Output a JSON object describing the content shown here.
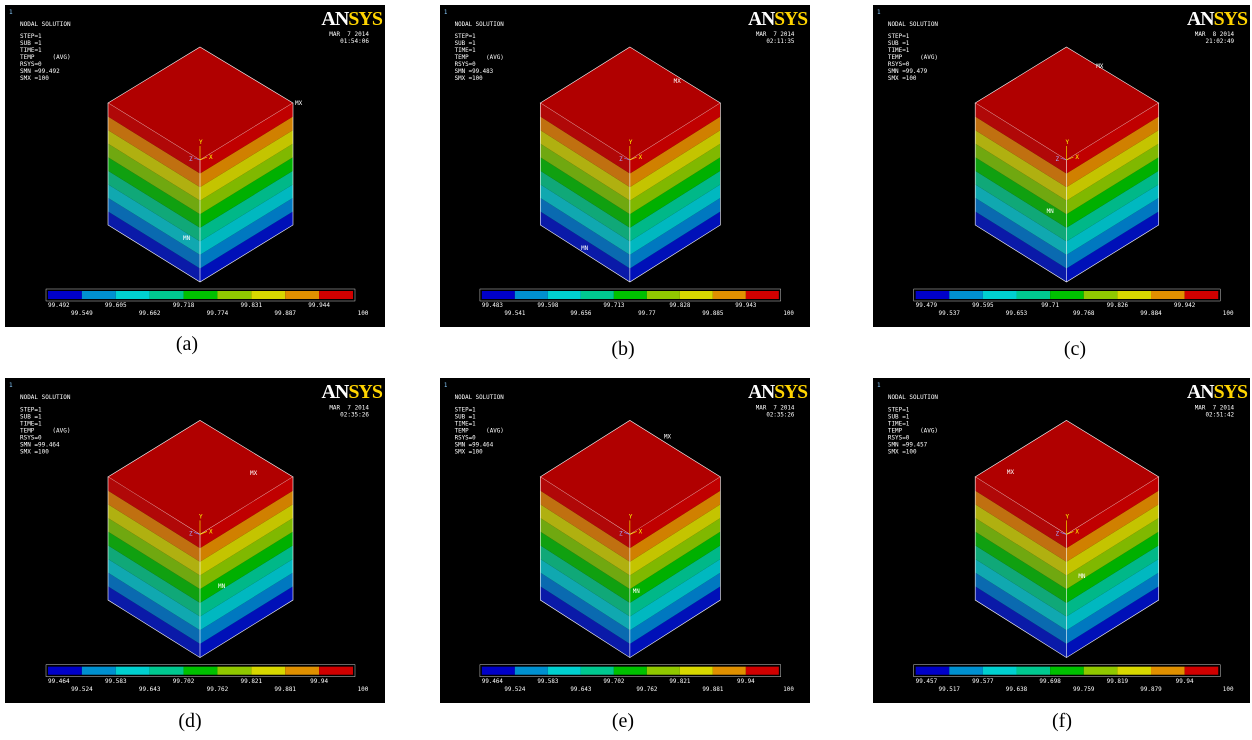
{
  "panels": [
    {
      "id": "1",
      "title": "NODAL SOLUTION",
      "info": [
        "STEP=1",
        "SUB =1",
        "TIME=1",
        "TEMP     (AVG)",
        "RSYS=0",
        "SMN =99.492",
        "SMX =100"
      ],
      "logo": "ANSYS",
      "date": "MAR  7 2014",
      "time": "01:54:06",
      "max_label": "MX",
      "min_label": "MN",
      "axes": [
        "Y",
        "X",
        "Z"
      ],
      "legend": [
        "99.492",
        "99.549",
        "99.605",
        "99.662",
        "99.718",
        "99.774",
        "99.831",
        "99.887",
        "99.944",
        "100"
      ],
      "caption": "(a)"
    },
    {
      "id": "1",
      "title": "NODAL SOLUTION",
      "info": [
        "STEP=1",
        "SUB =1",
        "TIME=1",
        "TEMP     (AVG)",
        "RSYS=0",
        "SMN =99.483",
        "SMX =100"
      ],
      "logo": "ANSYS",
      "date": "MAR  7 2014",
      "time": "02:11:35",
      "max_label": "MX",
      "min_label": "MN",
      "axes": [
        "Y",
        "X",
        "Z"
      ],
      "legend": [
        "99.483",
        "99.541",
        "99.598",
        "99.656",
        "99.713",
        "99.77",
        "99.828",
        "99.885",
        "99.943",
        "100"
      ],
      "caption": "(b)"
    },
    {
      "id": "1",
      "title": "NODAL SOLUTION",
      "info": [
        "STEP=1",
        "SUB =1",
        "TIME=1",
        "TEMP     (AVG)",
        "RSYS=0",
        "SMN =99.479",
        "SMX =100"
      ],
      "logo": "ANSYS",
      "date": "MAR  8 2014",
      "time": "21:02:49",
      "max_label": "MX",
      "min_label": "MN",
      "axes": [
        "Y",
        "X",
        "Z"
      ],
      "legend": [
        "99.479",
        "99.537",
        "99.595",
        "99.653",
        "99.71",
        "99.768",
        "99.826",
        "99.884",
        "99.942",
        "100"
      ],
      "caption": "(c)"
    },
    {
      "id": "1",
      "title": "NODAL SOLUTION",
      "info": [
        "STEP=1",
        "SUB =1",
        "TIME=1",
        "TEMP     (AVG)",
        "RSYS=0",
        "SMN =99.464",
        "SMX =100"
      ],
      "logo": "ANSYS",
      "date": "MAR  7 2014",
      "time": "02:35:26",
      "max_label": "MX",
      "min_label": "MN",
      "axes": [
        "Y",
        "X",
        "Z"
      ],
      "legend": [
        "99.464",
        "99.524",
        "99.583",
        "99.643",
        "99.702",
        "99.762",
        "99.821",
        "99.881",
        "99.94",
        "100"
      ],
      "caption": "(d)"
    },
    {
      "id": "1",
      "title": "NODAL SOLUTION",
      "info": [
        "STEP=1",
        "SUB =1",
        "TIME=1",
        "TEMP     (AVG)",
        "RSYS=0",
        "SMN =99.464",
        "SMX =100"
      ],
      "logo": "ANSYS",
      "date": "MAR  7 2014",
      "time": "02:35:26",
      "max_label": "MX",
      "min_label": "MN",
      "axes": [
        "Y",
        "X",
        "Z"
      ],
      "legend": [
        "99.464",
        "99.524",
        "99.583",
        "99.643",
        "99.702",
        "99.762",
        "99.821",
        "99.881",
        "99.94",
        "100"
      ],
      "caption": "(e)"
    },
    {
      "id": "1",
      "title": "NODAL SOLUTION",
      "info": [
        "STEP=1",
        "SUB =1",
        "TIME=1",
        "TEMP     (AVG)",
        "RSYS=0",
        "SMN =99.457",
        "SMX =100"
      ],
      "logo": "ANSYS",
      "date": "MAR  7 2014",
      "time": "02:51:42",
      "max_label": "MX",
      "min_label": "MN",
      "axes": [
        "Y",
        "X",
        "Z"
      ],
      "legend": [
        "99.457",
        "99.517",
        "99.577",
        "99.638",
        "99.698",
        "99.759",
        "99.819",
        "99.879",
        "99.94",
        "100"
      ],
      "caption": "(f)"
    }
  ]
}
